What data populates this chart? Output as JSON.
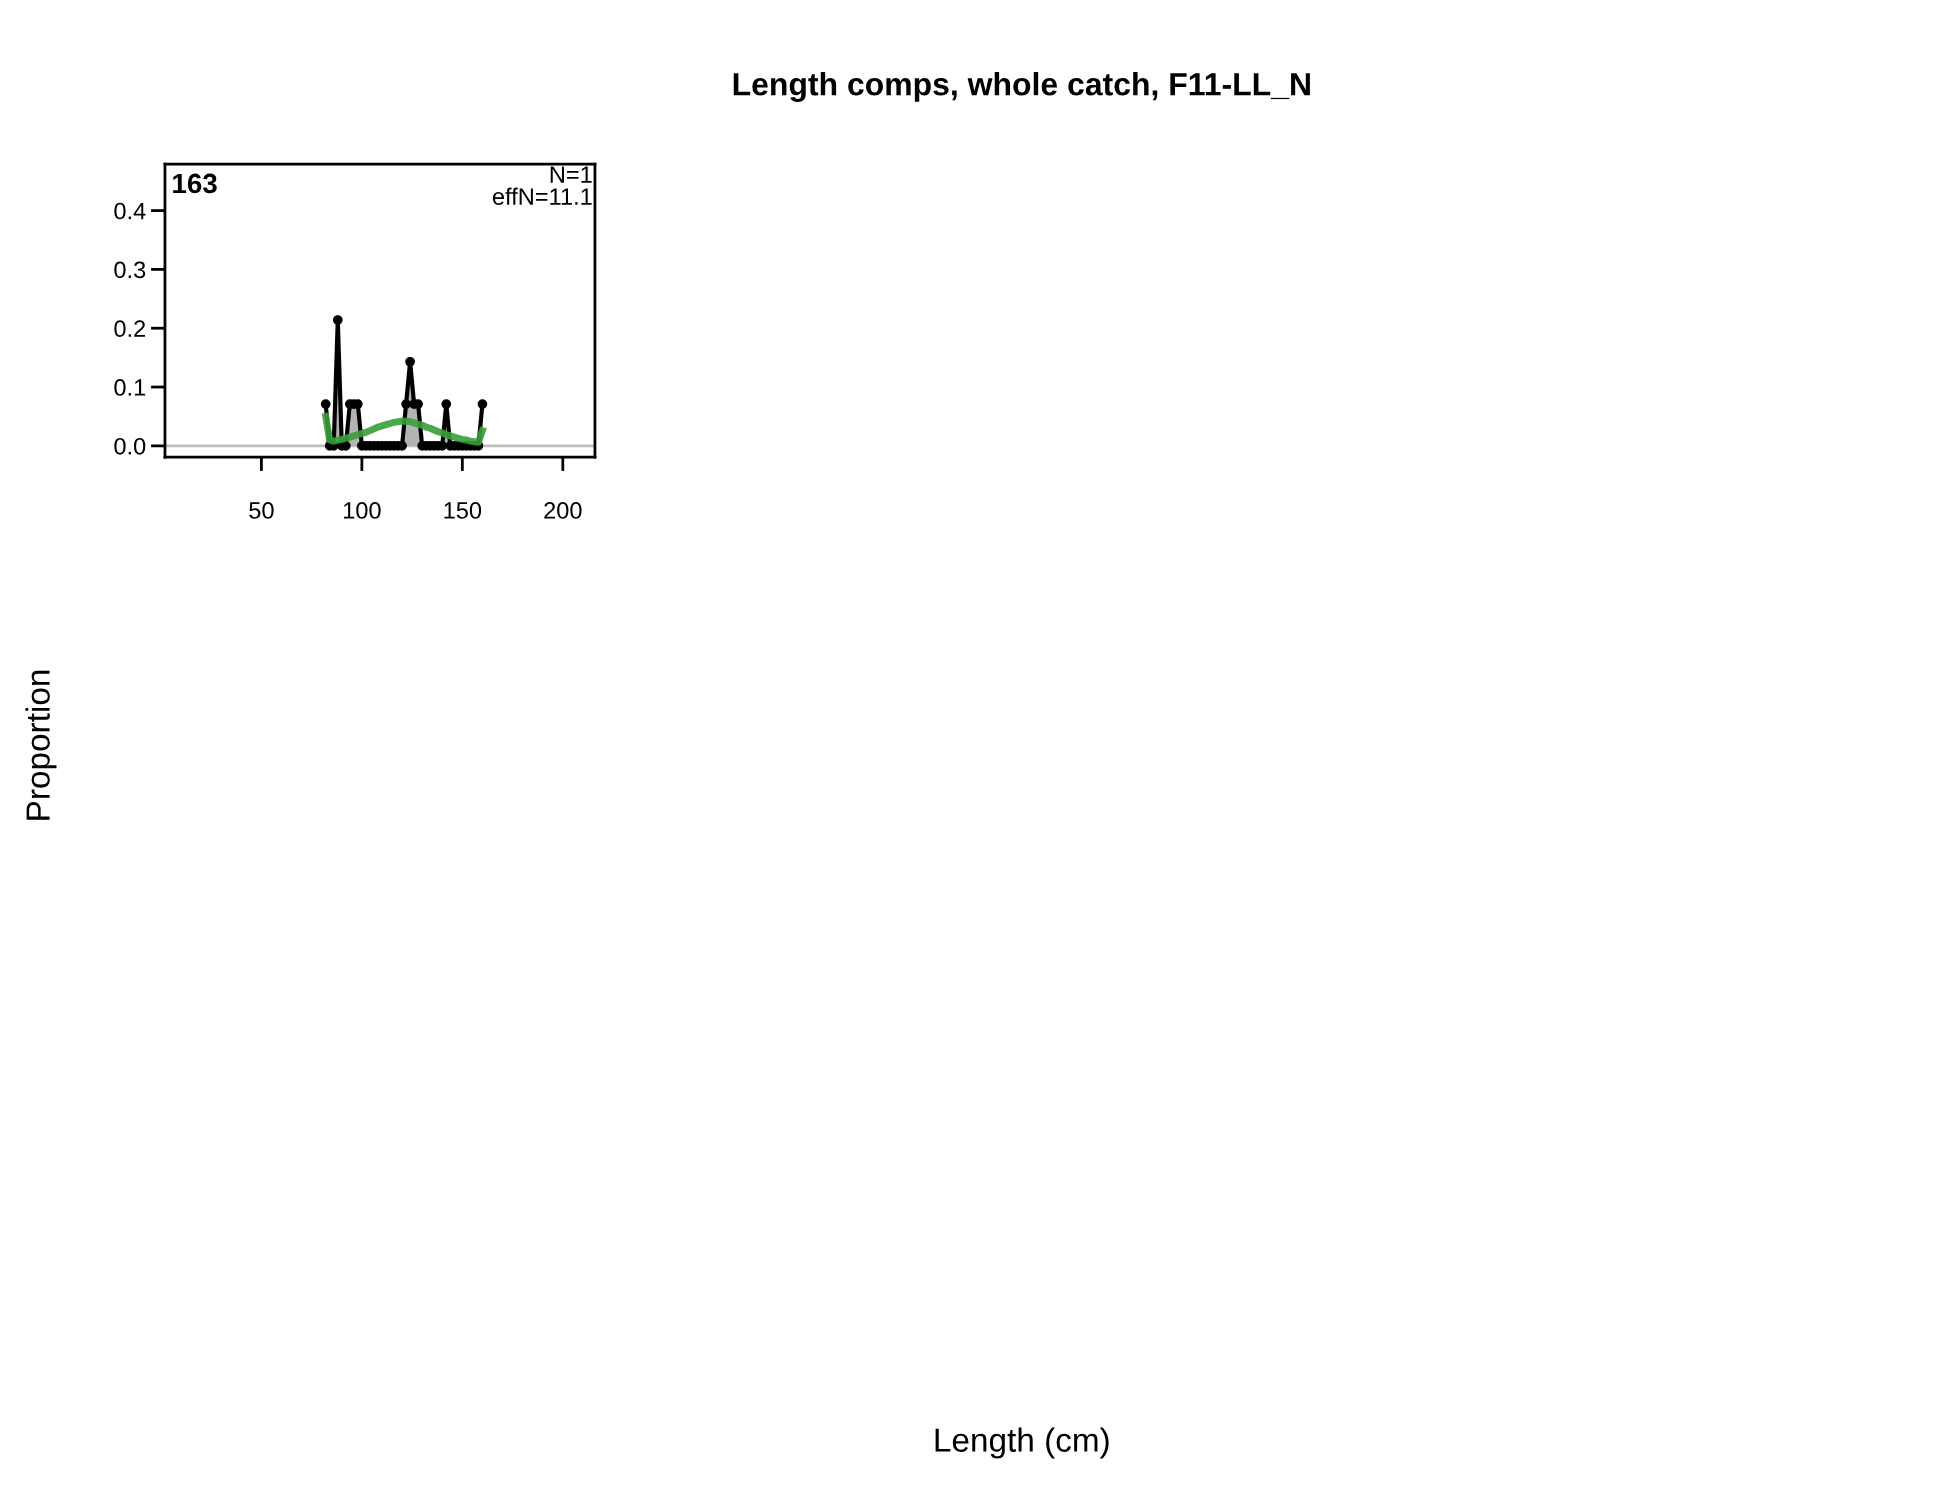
{
  "chart_data": {
    "type": "area",
    "title": "Length comps, whole catch, F11-LL_N",
    "ylabel": "Proportion",
    "annotations": [
      "163",
      "N=1",
      "effN=11.1",
      "Length (cm)"
    ],
    "x": [
      82,
      84,
      86,
      88,
      90,
      92,
      94,
      96,
      98,
      100,
      102,
      104,
      106,
      108,
      110,
      112,
      114,
      116,
      118,
      120,
      122,
      124,
      126,
      128,
      130,
      132,
      134,
      136,
      138,
      140,
      142,
      144,
      146,
      148,
      150,
      152,
      154,
      156,
      158,
      160
    ],
    "series": [
      {
        "color": "#b3b3b3",
        "marker": "circle",
        "values": [
          0.071,
          0,
          0,
          0.214,
          0,
          0,
          0.071,
          0.071,
          0.071,
          0,
          0,
          0,
          0,
          0,
          0,
          0,
          0,
          0,
          0,
          0,
          0.071,
          0.143,
          0.071,
          0.071,
          0,
          0,
          0,
          0,
          0,
          0,
          0.071,
          0,
          0,
          0,
          0,
          0,
          0,
          0,
          0,
          0.071
        ]
      },
      {
        "type": "line",
        "color": "#3a9e3a",
        "marker": "none",
        "values": [
          0.05,
          0.01,
          0.008,
          0.01,
          0.011,
          0.013,
          0.015,
          0.017,
          0.019,
          0.021,
          0.023,
          0.026,
          0.029,
          0.032,
          0.034,
          0.036,
          0.038,
          0.04,
          0.041,
          0.042,
          0.042,
          0.041,
          0.039,
          0.037,
          0.035,
          0.032,
          0.03,
          0.027,
          0.024,
          0.022,
          0.019,
          0.017,
          0.015,
          0.013,
          0.011,
          0.01,
          0.008,
          0.007,
          0.006,
          0.026
        ]
      }
    ],
    "ref_lines": [
      {
        "axis": "y",
        "value": 0,
        "color": "#bebebe"
      }
    ],
    "xlim": [
      2,
      216
    ],
    "ylim": [
      -0.019,
      0.479
    ],
    "xticks": [
      50,
      100,
      150,
      200
    ],
    "yticks": [
      {
        "value": 0,
        "label": "0.0"
      },
      {
        "value": 0.1,
        "label": "0.1"
      },
      {
        "value": 0.2,
        "label": "0.2"
      },
      {
        "value": 0.3,
        "label": "0.3"
      },
      {
        "value": 0.4,
        "label": "0.4"
      }
    ],
    "grid": false
  }
}
